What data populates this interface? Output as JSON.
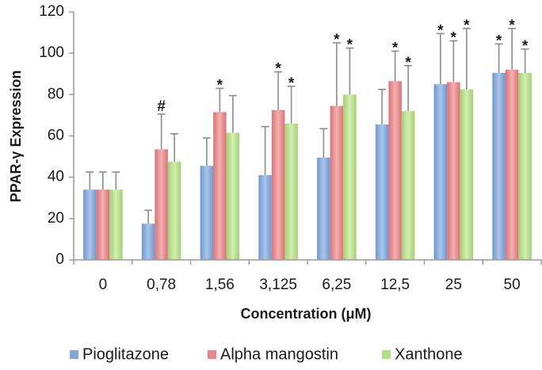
{
  "chart_data": {
    "type": "bar",
    "title": "",
    "xlabel": "Concentration (μM)",
    "ylabel": "PPAR-γ Expression",
    "ylim": [
      0,
      120
    ],
    "yticks": [
      "0",
      "20",
      "40",
      "60",
      "80",
      "100",
      "120"
    ],
    "categories": [
      "0",
      "0,78",
      "1,56",
      "3,125",
      "6,25",
      "12,5",
      "25",
      "50"
    ],
    "grid": false,
    "legend_position": "bottom",
    "error_bars": true,
    "series": [
      {
        "name": "Pioglitazone",
        "color": "#7fa7d9",
        "values": [
          34,
          17.5,
          45.5,
          41,
          49.5,
          65.5,
          85,
          90.5
        ],
        "errors": [
          8.5,
          6.5,
          13.5,
          23.5,
          14,
          17,
          24.5,
          14
        ],
        "annotations": [
          "",
          "",
          "",
          "",
          "",
          "",
          "*",
          "*"
        ]
      },
      {
        "name": "Alpha mangostin",
        "color": "#e8888a",
        "values": [
          34,
          53.5,
          71.5,
          72.5,
          74.5,
          86.5,
          86,
          92
        ],
        "errors": [
          8.5,
          17,
          11.5,
          18.5,
          30.5,
          14.5,
          20,
          20
        ],
        "annotations": [
          "",
          "#",
          "*",
          "*",
          "*",
          "*",
          "*",
          "*"
        ]
      },
      {
        "name": "Xanthone",
        "color": "#b4dc86",
        "values": [
          34,
          47.5,
          61.5,
          66,
          80,
          72,
          82.5,
          90.5
        ],
        "errors": [
          8.5,
          13.5,
          18,
          18,
          22.5,
          22,
          29.5,
          11.5
        ],
        "annotations": [
          "",
          "",
          "",
          "*",
          "*",
          "*",
          "*",
          "*"
        ]
      }
    ]
  }
}
